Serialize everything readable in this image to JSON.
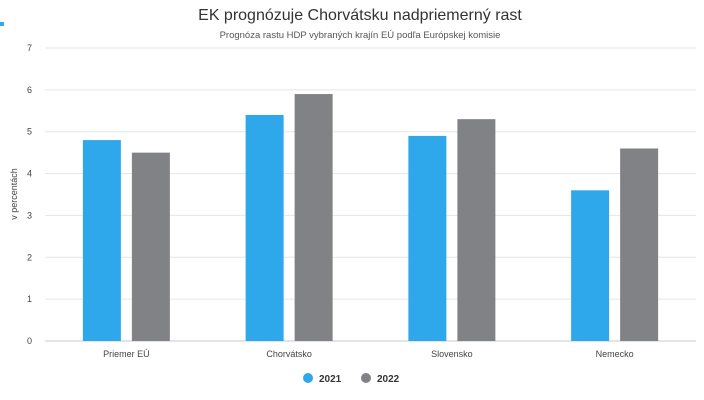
{
  "chart_data": {
    "type": "bar",
    "title": "EK prognózuje Chorvátsku nadpriemerný rast",
    "subtitle": "Prognóza rastu HDP vybraných krajín EÚ podľa Európskej komisie",
    "xlabel": "",
    "ylabel": "v percentách",
    "categories": [
      "Priemer EÚ",
      "Chorvátsko",
      "Slovensko",
      "Nemecko"
    ],
    "series": [
      {
        "name": "2021",
        "color": "#2ea8ea",
        "values": [
          4.8,
          5.4,
          4.9,
          3.6
        ]
      },
      {
        "name": "2022",
        "color": "#808285",
        "values": [
          4.5,
          5.9,
          5.3,
          4.6
        ]
      }
    ],
    "ylim": [
      0,
      7
    ],
    "yticks": [
      0,
      1,
      2,
      3,
      4,
      5,
      6,
      7
    ],
    "grid": true,
    "legend": "bottom-center"
  }
}
